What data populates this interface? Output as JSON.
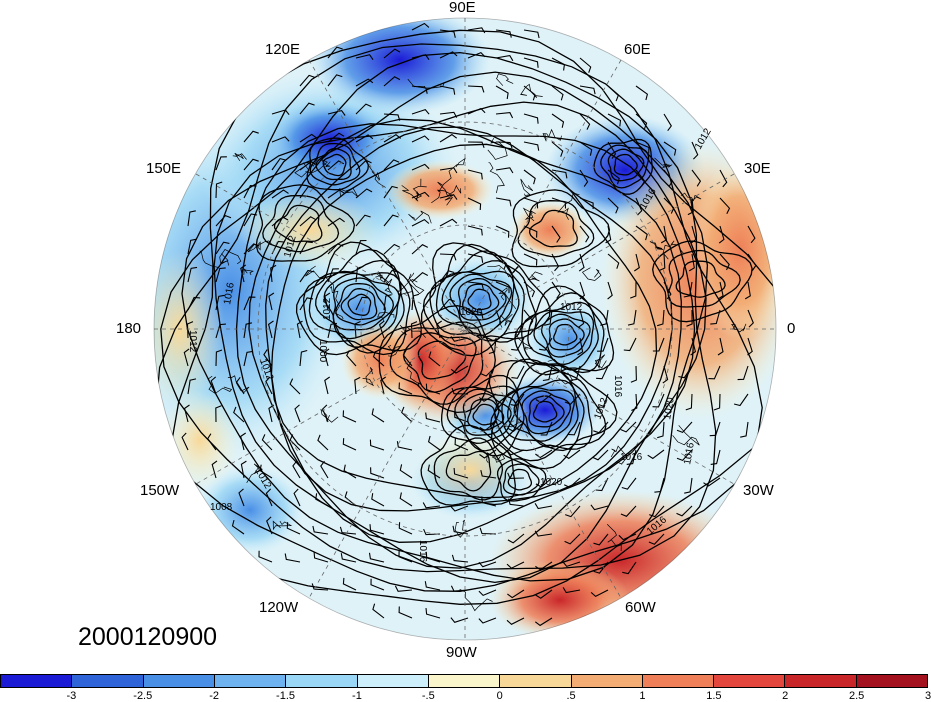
{
  "timestamp": "2000120900",
  "longitude_labels": [
    {
      "key": "top",
      "text": "90E"
    },
    {
      "key": "upper_left",
      "text": "120E"
    },
    {
      "key": "upper_right",
      "text": "60E"
    },
    {
      "key": "left_high",
      "text": "150E"
    },
    {
      "key": "right_high",
      "text": "30E"
    },
    {
      "key": "left",
      "text": "180"
    },
    {
      "key": "right",
      "text": "0"
    },
    {
      "key": "left_low",
      "text": "150W"
    },
    {
      "key": "right_low",
      "text": "30W"
    },
    {
      "key": "lower_left",
      "text": "120W"
    },
    {
      "key": "lower_right",
      "text": "60W"
    },
    {
      "key": "bottom",
      "text": "90W"
    }
  ],
  "contour_labels": [
    "1012",
    "1016",
    "1020",
    "1012",
    "1016",
    "1012",
    "1012",
    "1016",
    "1020",
    "1012",
    "1016",
    "1020",
    "1016",
    "1016",
    "1012",
    "1008",
    "1016",
    "1012",
    "1012",
    "1000"
  ],
  "colorbar": {
    "colors": [
      "#1b1bd6",
      "#2f63d8",
      "#4a8fe6",
      "#6eb2ef",
      "#9ad6f5",
      "#cdeefb",
      "#fbf5cc",
      "#f8d898",
      "#f3ad74",
      "#ee7f58",
      "#e3463d",
      "#c9262a",
      "#a5121f"
    ],
    "tick_labels": [
      "-3",
      "-2.5",
      "-2",
      "-1.5",
      "-1",
      "-.5",
      "0",
      ".5",
      "1",
      "1.5",
      "2",
      "2.5",
      "3"
    ]
  }
}
